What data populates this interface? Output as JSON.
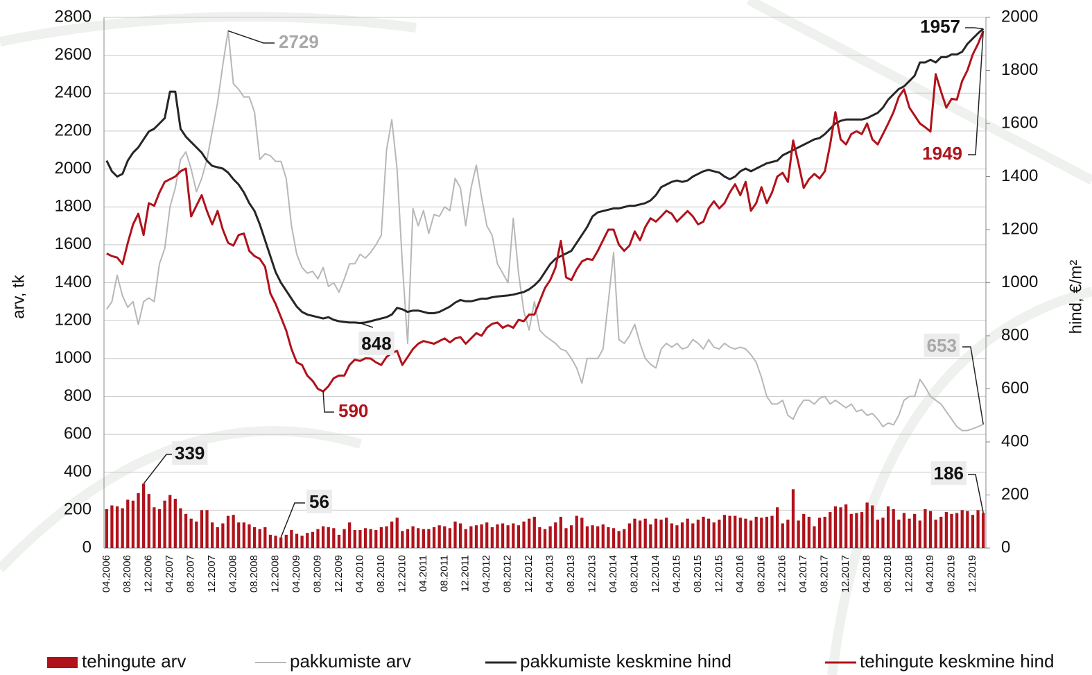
{
  "chart_data": {
    "type": "combo",
    "y_label": "arv, tk",
    "y2_label": "hind, €/m²",
    "categories": [
      "04.2006",
      null,
      null,
      null,
      "08.2006",
      null,
      null,
      null,
      "12.2006",
      null,
      null,
      null,
      "04.2007",
      null,
      null,
      null,
      "08.2007",
      null,
      null,
      null,
      "12.2007",
      null,
      null,
      null,
      "04.2008",
      null,
      null,
      null,
      "08.2008",
      null,
      null,
      null,
      "12.2008",
      null,
      null,
      null,
      "04.2009",
      null,
      null,
      null,
      "08.2009",
      null,
      null,
      null,
      "12.2009",
      null,
      null,
      null,
      "04.2010",
      null,
      null,
      null,
      "08.2010",
      null,
      null,
      null,
      "12.2010",
      null,
      null,
      null,
      "04.2011",
      null,
      null,
      null,
      "08.2011",
      null,
      null,
      null,
      "12.2011",
      null,
      null,
      null,
      "04.2012",
      null,
      null,
      null,
      "08.2012",
      null,
      null,
      null,
      "12.2012",
      null,
      null,
      null,
      "04.2013",
      null,
      null,
      null,
      "08.2013",
      null,
      null,
      null,
      "12.2013",
      null,
      null,
      null,
      "04.2014",
      null,
      null,
      null,
      "08.2014",
      null,
      null,
      null,
      "12.2014",
      null,
      null,
      null,
      "04.2015",
      null,
      null,
      null,
      "08.2015",
      null,
      null,
      null,
      "12.2015",
      null,
      null,
      null,
      "04.2016",
      null,
      null,
      null,
      "08.2016",
      null,
      null,
      null,
      "12.2016",
      null,
      null,
      null,
      "04.2017",
      null,
      null,
      null,
      "08.2017",
      null,
      null,
      null,
      "12.2017",
      null,
      null,
      null,
      "04.2018",
      null,
      null,
      null,
      "08.2018",
      null,
      null,
      null,
      "12.2018",
      null,
      null,
      null,
      "04.2019",
      null,
      null,
      null,
      "08.2019",
      null,
      null,
      null,
      "12.2019",
      null,
      null
    ],
    "series": [
      {
        "name": "tehingute arv",
        "type": "bar",
        "color": "#b0121b",
        "values": [
          205,
          225,
          220,
          210,
          255,
          250,
          290,
          339,
          285,
          215,
          205,
          250,
          280,
          260,
          210,
          180,
          155,
          140,
          200,
          200,
          135,
          110,
          130,
          170,
          175,
          135,
          135,
          125,
          110,
          100,
          110,
          70,
          65,
          56,
          70,
          95,
          75,
          65,
          80,
          85,
          100,
          115,
          110,
          105,
          70,
          100,
          135,
          95,
          95,
          105,
          100,
          95,
          110,
          115,
          140,
          160,
          90,
          100,
          115,
          105,
          100,
          100,
          110,
          120,
          115,
          105,
          140,
          130,
          100,
          115,
          120,
          125,
          135,
          110,
          125,
          130,
          120,
          130,
          120,
          140,
          155,
          165,
          110,
          100,
          115,
          135,
          165,
          105,
          120,
          170,
          160,
          115,
          120,
          115,
          125,
          110,
          105,
          90,
          100,
          130,
          155,
          145,
          155,
          125,
          155,
          150,
          160,
          130,
          120,
          135,
          155,
          130,
          150,
          165,
          155,
          135,
          150,
          175,
          170,
          170,
          160,
          155,
          145,
          165,
          160,
          165,
          170,
          215,
          130,
          150,
          310,
          145,
          180,
          165,
          115,
          160,
          165,
          190,
          220,
          215,
          230,
          180,
          185,
          190,
          240,
          225,
          150,
          160,
          220,
          205,
          150,
          185,
          155,
          180,
          145,
          205,
          195,
          150,
          165,
          190,
          180,
          185,
          200,
          195,
          175,
          200,
          186
        ]
      },
      {
        "name": "pakkumiste arv",
        "type": "line",
        "color": "#b7b7b7",
        "values": [
          1260,
          1300,
          1440,
          1330,
          1270,
          1300,
          1180,
          1300,
          1320,
          1300,
          1500,
          1580,
          1800,
          1900,
          2050,
          2090,
          2000,
          1880,
          1950,
          2050,
          2200,
          2350,
          2550,
          2729,
          2450,
          2420,
          2380,
          2380,
          2300,
          2050,
          2080,
          2070,
          2040,
          2040,
          1950,
          1700,
          1550,
          1480,
          1450,
          1460,
          1420,
          1480,
          1380,
          1400,
          1350,
          1420,
          1500,
          1500,
          1550,
          1530,
          1560,
          1600,
          1650,
          2100,
          2260,
          2000,
          1500,
          1080,
          1790,
          1700,
          1780,
          1660,
          1760,
          1750,
          1800,
          1780,
          1950,
          1900,
          1700,
          1900,
          2020,
          1850,
          1700,
          1650,
          1500,
          1450,
          1400,
          1740,
          1450,
          1250,
          1150,
          1300,
          1150,
          1120,
          1100,
          1080,
          1050,
          1040,
          1000,
          950,
          870,
          1000,
          1000,
          1000,
          1050,
          1300,
          1560,
          1100,
          1080,
          1120,
          1180,
          1080,
          1000,
          970,
          950,
          1050,
          1080,
          1060,
          1080,
          1050,
          1060,
          1100,
          1080,
          1050,
          1100,
          1060,
          1050,
          1080,
          1060,
          1050,
          1060,
          1050,
          1020,
          980,
          900,
          800,
          760,
          760,
          780,
          700,
          680,
          740,
          780,
          780,
          760,
          790,
          800,
          760,
          780,
          760,
          740,
          760,
          720,
          730,
          700,
          710,
          680,
          640,
          660,
          650,
          700,
          780,
          800,
          800,
          890,
          850,
          800,
          780,
          760,
          720,
          680,
          640,
          620,
          620,
          630,
          640,
          653
        ]
      },
      {
        "name": "pakkumiste keskmine hind",
        "type": "line",
        "axis": "y2",
        "color": "#262626",
        "values": [
          1460,
          1420,
          1400,
          1410,
          1460,
          1490,
          1510,
          1540,
          1570,
          1580,
          1600,
          1620,
          1720,
          1720,
          1580,
          1550,
          1530,
          1510,
          1490,
          1460,
          1440,
          1435,
          1430,
          1415,
          1390,
          1370,
          1340,
          1300,
          1270,
          1220,
          1160,
          1100,
          1040,
          1000,
          970,
          940,
          910,
          890,
          880,
          875,
          870,
          865,
          870,
          860,
          855,
          852,
          850,
          850,
          848,
          850,
          855,
          860,
          865,
          870,
          880,
          905,
          900,
          890,
          895,
          895,
          890,
          885,
          885,
          890,
          900,
          910,
          925,
          935,
          930,
          930,
          935,
          940,
          940,
          945,
          948,
          950,
          952,
          955,
          960,
          965,
          975,
          990,
          1010,
          1040,
          1070,
          1090,
          1100,
          1110,
          1120,
          1150,
          1180,
          1210,
          1250,
          1265,
          1270,
          1275,
          1280,
          1280,
          1285,
          1290,
          1290,
          1295,
          1300,
          1310,
          1330,
          1360,
          1370,
          1380,
          1385,
          1380,
          1385,
          1400,
          1410,
          1420,
          1425,
          1420,
          1415,
          1400,
          1390,
          1400,
          1420,
          1430,
          1420,
          1430,
          1440,
          1450,
          1455,
          1460,
          1480,
          1490,
          1500,
          1510,
          1520,
          1530,
          1540,
          1545,
          1560,
          1580,
          1600,
          1610,
          1615,
          1615,
          1615,
          1615,
          1620,
          1630,
          1640,
          1660,
          1690,
          1710,
          1730,
          1740,
          1760,
          1780,
          1830,
          1830,
          1840,
          1830,
          1850,
          1850,
          1860,
          1860,
          1870,
          1900,
          1920,
          1940,
          1957
        ]
      },
      {
        "name": "tehingute keskmine hind",
        "type": "line",
        "axis": "y2",
        "color": "#b0121b",
        "values": [
          1110,
          1100,
          1095,
          1070,
          1150,
          1220,
          1260,
          1180,
          1300,
          1290,
          1340,
          1380,
          1390,
          1400,
          1420,
          1430,
          1250,
          1290,
          1330,
          1270,
          1220,
          1270,
          1200,
          1150,
          1140,
          1180,
          1185,
          1120,
          1100,
          1090,
          1060,
          960,
          920,
          870,
          820,
          750,
          700,
          690,
          650,
          630,
          600,
          590,
          610,
          640,
          650,
          650,
          690,
          710,
          705,
          715,
          714,
          700,
          690,
          720,
          735,
          743,
          690,
          720,
          750,
          770,
          780,
          775,
          770,
          780,
          790,
          775,
          790,
          795,
          770,
          790,
          810,
          800,
          830,
          845,
          850,
          830,
          840,
          830,
          860,
          855,
          880,
          880,
          930,
          980,
          1010,
          1057,
          1157,
          1020,
          1010,
          1050,
          1080,
          1090,
          1086,
          1120,
          1160,
          1200,
          1200,
          1143,
          1120,
          1140,
          1193,
          1160,
          1210,
          1243,
          1230,
          1250,
          1271,
          1260,
          1230,
          1250,
          1270,
          1250,
          1220,
          1230,
          1280,
          1307,
          1280,
          1300,
          1340,
          1371,
          1330,
          1380,
          1271,
          1300,
          1360,
          1300,
          1340,
          1400,
          1414,
          1380,
          1536,
          1450,
          1357,
          1390,
          1410,
          1393,
          1420,
          1520,
          1643,
          1540,
          1521,
          1560,
          1571,
          1560,
          1600,
          1540,
          1521,
          1560,
          1600,
          1643,
          1700,
          1729,
          1660,
          1630,
          1600,
          1586,
          1570,
          1786,
          1720,
          1660,
          1693,
          1690,
          1760,
          1800,
          1860,
          1900,
          1949
        ]
      }
    ],
    "ylim": [
      0,
      2800
    ],
    "yticks": [
      0,
      200,
      400,
      600,
      800,
      1000,
      1200,
      1400,
      1600,
      1800,
      2000,
      2200,
      2400,
      2600,
      2800
    ],
    "y2lim": [
      0,
      2000
    ],
    "y2ticks": [
      0,
      200,
      400,
      600,
      800,
      1000,
      1200,
      1400,
      1600,
      1800,
      2000
    ],
    "grid": true,
    "legend": "bottom"
  }
}
